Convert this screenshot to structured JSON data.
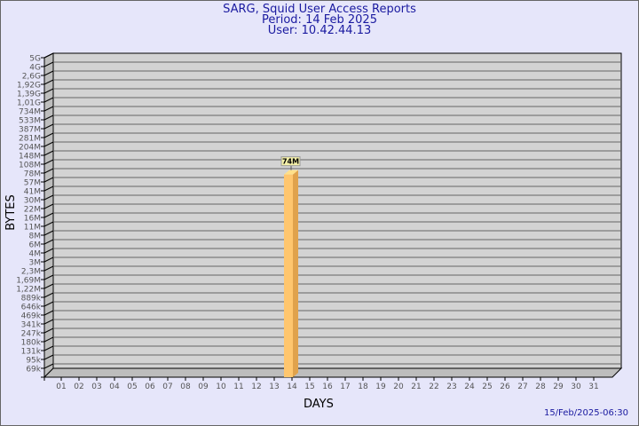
{
  "header": {
    "title": "SARG, Squid User Access Reports",
    "period": "Period: 14 Feb 2025",
    "user": "User: 10.42.44.13"
  },
  "footer": {
    "timestamp": "15/Feb/2025-06:30"
  },
  "colors": {
    "background": "#e6e6fa",
    "plot": "#d3d3d3",
    "bar_front": "#ffc66e",
    "bar_side": "#e0a24c",
    "label_box": "#f4f0a8",
    "title": "#1a1aa0"
  },
  "chart_data": {
    "type": "bar",
    "title": "SARG, Squid User Access Reports",
    "xlabel": "DAYS",
    "ylabel": "BYTES",
    "scale": "log",
    "grid": true,
    "y_ticks": [
      "5G",
      "4G",
      "2,6G",
      "1,92G",
      "1,39G",
      "1,01G",
      "734M",
      "533M",
      "387M",
      "281M",
      "204M",
      "148M",
      "108M",
      "78M",
      "57M",
      "41M",
      "30M",
      "22M",
      "16M",
      "11M",
      "8M",
      "6M",
      "4M",
      "3M",
      "2,3M",
      "1,69M",
      "1,22M",
      "889k",
      "646k",
      "469k",
      "341k",
      "247k",
      "180k",
      "131k",
      "95k",
      "69k"
    ],
    "categories": [
      "01",
      "02",
      "03",
      "04",
      "05",
      "06",
      "07",
      "08",
      "09",
      "10",
      "11",
      "12",
      "13",
      "14",
      "15",
      "16",
      "17",
      "18",
      "19",
      "20",
      "21",
      "22",
      "23",
      "24",
      "25",
      "26",
      "27",
      "28",
      "29",
      "30",
      "31"
    ],
    "values": [
      null,
      null,
      null,
      null,
      null,
      null,
      null,
      null,
      null,
      null,
      null,
      null,
      null,
      "74M",
      null,
      null,
      null,
      null,
      null,
      null,
      null,
      null,
      null,
      null,
      null,
      null,
      null,
      null,
      null,
      null,
      null
    ],
    "data_labels": {
      "14": "74M"
    }
  }
}
